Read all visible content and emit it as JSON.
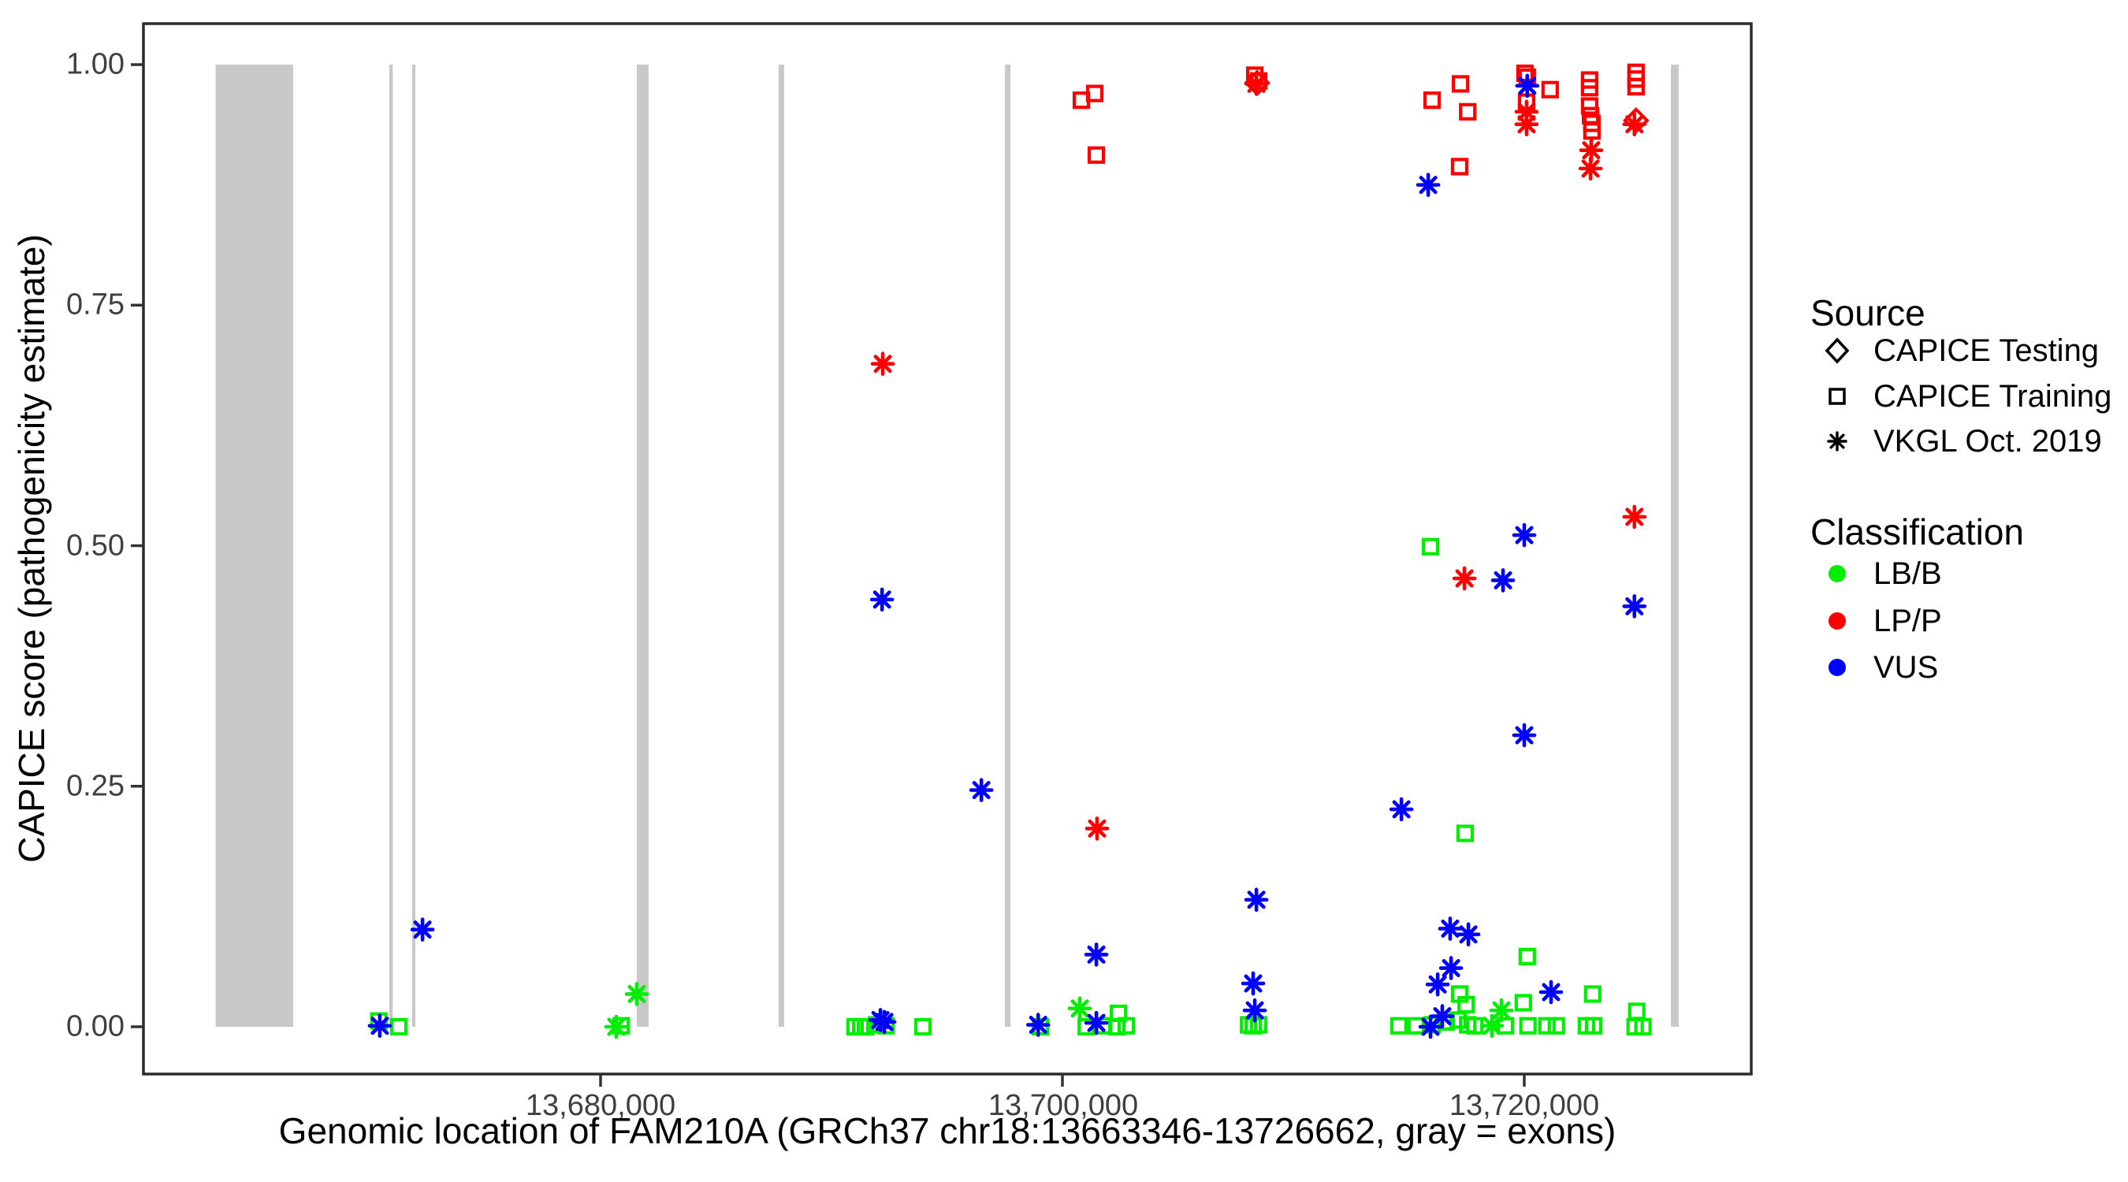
{
  "legend": {
    "source": {
      "title": "Source",
      "items": [
        {
          "label": "CAPICE Testing",
          "marker": "diamond"
        },
        {
          "label": "CAPICE Training",
          "marker": "square"
        },
        {
          "label": "VKGL Oct. 2019",
          "marker": "asterisk"
        }
      ]
    },
    "classification": {
      "title": "Classification",
      "items": [
        {
          "label": "LB/B",
          "color": "#00ee00"
        },
        {
          "label": "LP/P",
          "color": "#ff0000"
        },
        {
          "label": "VUS",
          "color": "#0000ff"
        }
      ]
    }
  },
  "chart_data": {
    "type": "scatter",
    "xlabel": "Genomic location of FAM210A (GRCh37 chr18:13663346-13726662, gray = exons)",
    "ylabel": "CAPICE score (pathogenicity estimate)",
    "x_range": [
      13660200,
      13729800
    ],
    "y_range": [
      0,
      1
    ],
    "grid": false,
    "legend_position": "right",
    "x_ticks": [
      {
        "value": 13680000,
        "label": "13,680,000"
      },
      {
        "value": 13700000,
        "label": "13,700,000"
      },
      {
        "value": 13720000,
        "label": "13,720,000"
      }
    ],
    "y_ticks": [
      {
        "value": 0.0,
        "label": "0.00"
      },
      {
        "value": 0.25,
        "label": "0.25"
      },
      {
        "value": 0.5,
        "label": "0.50"
      },
      {
        "value": 0.75,
        "label": "0.75"
      },
      {
        "value": 1.0,
        "label": "1.00"
      }
    ],
    "exon_color": "#c8c8c8",
    "exons": [
      [
        13663330,
        13666690
      ],
      [
        13670850,
        13671000
      ],
      [
        13671840,
        13671980
      ],
      [
        13681570,
        13682080
      ],
      [
        13687710,
        13687950
      ],
      [
        13697510,
        13697750
      ],
      [
        13726350,
        13726690
      ]
    ],
    "series": [
      {
        "name": "LB/B CAPICE Training",
        "classification": "LB/B",
        "source": "CAPICE Training",
        "marker": "square",
        "color": "#00ee00",
        "points": [
          [
            13670400,
            0.006
          ],
          [
            13671260,
            0.0
          ],
          [
            13680890,
            0.001
          ],
          [
            13691020,
            0.0
          ],
          [
            13691260,
            0.0
          ],
          [
            13691470,
            0.0
          ],
          [
            13691950,
            0.002
          ],
          [
            13692360,
            0.001
          ],
          [
            13693960,
            0.0
          ],
          [
            13699050,
            0.0
          ],
          [
            13701030,
            0.0
          ],
          [
            13701780,
            0.001
          ],
          [
            13702430,
            0.014
          ],
          [
            13702360,
            0.0
          ],
          [
            13702770,
            0.001
          ],
          [
            13708060,
            0.002
          ],
          [
            13708260,
            0.001
          ],
          [
            13708500,
            0.002
          ],
          [
            13714570,
            0.001
          ],
          [
            13715320,
            0.001
          ],
          [
            13715940,
            0.499
          ],
          [
            13716010,
            0.002
          ],
          [
            13716620,
            0.005
          ],
          [
            13717130,
            0.007
          ],
          [
            13717200,
            0.034
          ],
          [
            13717440,
            0.201
          ],
          [
            13717480,
            0.023
          ],
          [
            13717550,
            0.002
          ],
          [
            13717860,
            0.001
          ],
          [
            13719180,
            0.001
          ],
          [
            13719960,
            0.025
          ],
          [
            13720130,
            0.073
          ],
          [
            13720160,
            0.001
          ],
          [
            13720980,
            0.001
          ],
          [
            13721390,
            0.001
          ],
          [
            13722690,
            0.001
          ],
          [
            13723000,
            0.001
          ],
          [
            13722960,
            0.034
          ],
          [
            13724800,
            0.0
          ],
          [
            13724870,
            0.016
          ],
          [
            13725140,
            0.0
          ]
        ]
      },
      {
        "name": "LB/B VKGL Oct. 2019",
        "classification": "LB/B",
        "source": "VKGL Oct. 2019",
        "marker": "asterisk",
        "color": "#00ee00",
        "points": [
          [
            13680680,
            0.0
          ],
          [
            13681570,
            0.034
          ],
          [
            13700750,
            0.019
          ],
          [
            13718600,
            0.001
          ],
          [
            13719010,
            0.017
          ]
        ]
      },
      {
        "name": "LP/P CAPICE Training",
        "classification": "LP/P",
        "source": "CAPICE Training",
        "marker": "square",
        "color": "#ff0000",
        "points": [
          [
            13700820,
            0.963
          ],
          [
            13701400,
            0.97
          ],
          [
            13701470,
            0.906
          ],
          [
            13708330,
            0.989
          ],
          [
            13708500,
            0.983
          ],
          [
            13716010,
            0.963
          ],
          [
            13717240,
            0.98
          ],
          [
            13717550,
            0.951
          ],
          [
            13717200,
            0.894
          ],
          [
            13720030,
            0.991
          ],
          [
            13720130,
            0.987
          ],
          [
            13720100,
            0.961
          ],
          [
            13721120,
            0.974
          ],
          [
            13722830,
            0.984
          ],
          [
            13722830,
            0.976
          ],
          [
            13722830,
            0.957
          ],
          [
            13722870,
            0.947
          ],
          [
            13722930,
            0.939
          ],
          [
            13722930,
            0.931
          ],
          [
            13724840,
            0.992
          ],
          [
            13724840,
            0.985
          ],
          [
            13724840,
            0.977
          ]
        ]
      },
      {
        "name": "LP/P CAPICE Testing",
        "classification": "LP/P",
        "source": "CAPICE Testing",
        "marker": "diamond",
        "color": "#ff0000",
        "points": [
          [
            13708430,
            0.981
          ],
          [
            13724840,
            0.942
          ]
        ]
      },
      {
        "name": "LP/P VKGL Oct. 2019",
        "classification": "LP/P",
        "source": "VKGL Oct. 2019",
        "marker": "asterisk",
        "color": "#ff0000",
        "points": [
          [
            13692220,
            0.689
          ],
          [
            13701500,
            0.206
          ],
          [
            13708400,
            0.98
          ],
          [
            13717410,
            0.466
          ],
          [
            13720100,
            0.951
          ],
          [
            13720100,
            0.938
          ],
          [
            13722900,
            0.911
          ],
          [
            13722870,
            0.892
          ],
          [
            13724770,
            0.938
          ],
          [
            13724770,
            0.53
          ]
        ]
      },
      {
        "name": "VUS VKGL Oct. 2019",
        "classification": "VUS",
        "source": "VKGL Oct. 2019",
        "marker": "asterisk",
        "color": "#0000ff",
        "points": [
          [
            13670440,
            0.001
          ],
          [
            13672290,
            0.101
          ],
          [
            13692190,
            0.444
          ],
          [
            13692120,
            0.007
          ],
          [
            13692290,
            0.005
          ],
          [
            13696490,
            0.246
          ],
          [
            13698950,
            0.002
          ],
          [
            13701470,
            0.075
          ],
          [
            13701470,
            0.004
          ],
          [
            13708400,
            0.132
          ],
          [
            13708260,
            0.045
          ],
          [
            13708330,
            0.017
          ],
          [
            13714680,
            0.226
          ],
          [
            13715840,
            0.875
          ],
          [
            13715940,
            0.0
          ],
          [
            13716450,
            0.011
          ],
          [
            13716790,
            0.102
          ],
          [
            13717580,
            0.096
          ],
          [
            13716830,
            0.061
          ],
          [
            13716250,
            0.044
          ],
          [
            13719080,
            0.464
          ],
          [
            13720000,
            0.511
          ],
          [
            13720000,
            0.303
          ],
          [
            13720130,
            0.978
          ],
          [
            13721160,
            0.036
          ],
          [
            13724770,
            0.437
          ]
        ]
      }
    ]
  }
}
